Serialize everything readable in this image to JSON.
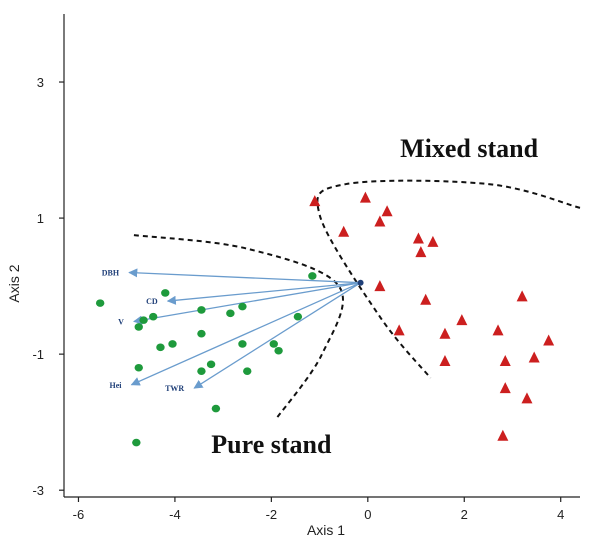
{
  "chart_data": {
    "type": "scatter",
    "title": "",
    "xlabel": "Axis 1",
    "ylabel": "Axis 2",
    "xlim": [
      -6.3,
      4.4
    ],
    "ylim": [
      -3.1,
      4.0
    ],
    "xticks": [
      -6,
      -4,
      -2,
      0,
      2,
      4
    ],
    "yticks": [
      -3,
      -1,
      1,
      3
    ],
    "xtick_labels": [
      "-6",
      "-4",
      "-2",
      "0",
      "2",
      "4"
    ],
    "ytick_labels": [
      "-3",
      "-1",
      "1",
      "3"
    ],
    "grid": false,
    "legend": "none",
    "series": [
      {
        "name": "Pure stand",
        "marker": "circle",
        "color": "#1e9a3c",
        "points": [
          [
            -1.15,
            0.15
          ],
          [
            -5.55,
            -0.25
          ],
          [
            -4.2,
            -0.1
          ],
          [
            -4.45,
            -0.45
          ],
          [
            -4.65,
            -0.5
          ],
          [
            -3.45,
            -0.35
          ],
          [
            -2.85,
            -0.4
          ],
          [
            -2.6,
            -0.3
          ],
          [
            -1.45,
            -0.45
          ],
          [
            -4.75,
            -0.6
          ],
          [
            -3.45,
            -0.7
          ],
          [
            -4.05,
            -0.85
          ],
          [
            -4.3,
            -0.9
          ],
          [
            -2.6,
            -0.85
          ],
          [
            -1.95,
            -0.85
          ],
          [
            -1.85,
            -0.95
          ],
          [
            -3.25,
            -1.15
          ],
          [
            -4.75,
            -1.2
          ],
          [
            -3.45,
            -1.25
          ],
          [
            -2.5,
            -1.25
          ],
          [
            -3.15,
            -1.8
          ],
          [
            -4.8,
            -2.3
          ]
        ]
      },
      {
        "name": "Mixed stand",
        "marker": "triangle",
        "color": "#cc1f1f",
        "points": [
          [
            -1.1,
            1.25
          ],
          [
            -0.05,
            1.3
          ],
          [
            0.4,
            1.1
          ],
          [
            0.25,
            0.95
          ],
          [
            -0.5,
            0.8
          ],
          [
            1.05,
            0.7
          ],
          [
            1.35,
            0.65
          ],
          [
            1.1,
            0.5
          ],
          [
            0.25,
            0.0
          ],
          [
            1.2,
            -0.2
          ],
          [
            3.2,
            -0.15
          ],
          [
            1.95,
            -0.5
          ],
          [
            0.65,
            -0.65
          ],
          [
            1.6,
            -0.7
          ],
          [
            2.7,
            -0.65
          ],
          [
            3.75,
            -0.8
          ],
          [
            2.85,
            -1.1
          ],
          [
            3.45,
            -1.05
          ],
          [
            1.6,
            -1.1
          ],
          [
            2.85,
            -1.5
          ],
          [
            3.3,
            -1.65
          ],
          [
            2.8,
            -2.2
          ]
        ]
      }
    ],
    "vectors": {
      "origin": [
        -0.15,
        0.05
      ],
      "color": "#6a9ccd",
      "items": [
        {
          "label": "DBH",
          "x": -4.95,
          "y": 0.2
        },
        {
          "label": "CD",
          "x": -4.15,
          "y": -0.22
        },
        {
          "label": "V",
          "x": -4.85,
          "y": -0.52
        },
        {
          "label": "Hei",
          "x": -4.9,
          "y": -1.45
        },
        {
          "label": "TWR",
          "x": -3.6,
          "y": -1.5
        }
      ]
    },
    "annotations": [
      {
        "text": "Mixed stand",
        "x": 2.1,
        "y": 1.9
      },
      {
        "text": "Pure stand",
        "x": -2.0,
        "y": -2.45
      }
    ],
    "boundaries": [
      {
        "name": "pure-boundary",
        "points": [
          [
            -4.85,
            0.75
          ],
          [
            -2.5,
            0.55
          ],
          [
            -0.6,
            0.0
          ],
          [
            -0.95,
            -1.0
          ],
          [
            -1.9,
            -1.95
          ]
        ]
      },
      {
        "name": "mixed-boundary",
        "points": [
          [
            4.4,
            1.15
          ],
          [
            2.5,
            1.5
          ],
          [
            -0.45,
            1.5
          ],
          [
            -1.0,
            1.05
          ],
          [
            0.25,
            -0.45
          ],
          [
            1.3,
            -1.35
          ]
        ]
      }
    ]
  }
}
